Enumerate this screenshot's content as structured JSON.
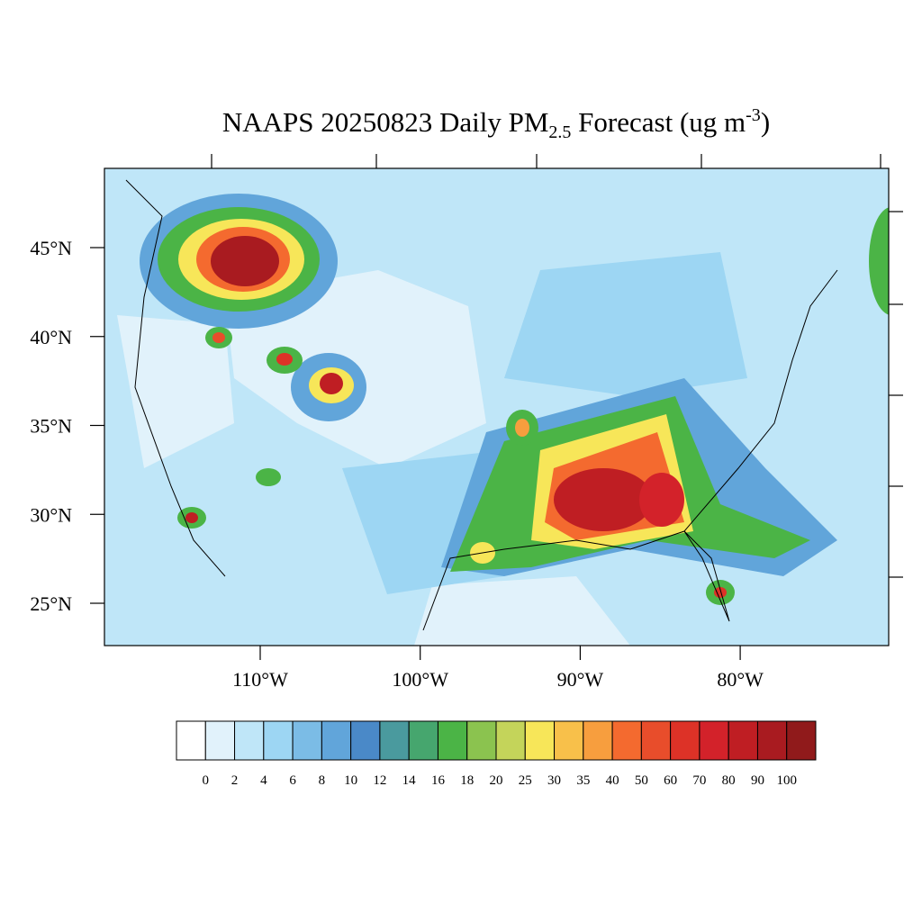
{
  "map": {
    "title": {
      "main": "NAAPS 20250823 Daily PM",
      "sub": "2.5",
      "rest": " Forecast (ug m",
      "sup": "-3",
      "end": ")"
    },
    "lat_ticks": [
      {
        "value": 45,
        "label": "45°N"
      },
      {
        "value": 40,
        "label": "40°N"
      },
      {
        "value": 35,
        "label": "35°N"
      },
      {
        "value": 30,
        "label": "30°N"
      },
      {
        "value": 25,
        "label": "25°N"
      }
    ],
    "lon_ticks": [
      {
        "value": -110,
        "label": "110°W"
      },
      {
        "value": -100,
        "label": "100°W"
      },
      {
        "value": -90,
        "label": "90°W"
      },
      {
        "value": -80,
        "label": "80°W"
      }
    ],
    "colorbar": {
      "colors": [
        "#ffffff",
        "#e1f2fb",
        "#bfe6f8",
        "#9dd6f3",
        "#7bbce6",
        "#61a5da",
        "#4a89c8",
        "#4a9a9e",
        "#46a66e",
        "#4bb446",
        "#8bc34f",
        "#c4d45a",
        "#f7e659",
        "#f8c04a",
        "#f79e3e",
        "#f46a2f",
        "#e84d2b",
        "#dd3227",
        "#d3222a",
        "#bf1e23",
        "#a91b20",
        "#901a1b"
      ],
      "levels": [
        0,
        2,
        4,
        6,
        8,
        10,
        12,
        14,
        16,
        18,
        20,
        25,
        30,
        35,
        40,
        50,
        60,
        70,
        80,
        90,
        100
      ]
    }
  }
}
